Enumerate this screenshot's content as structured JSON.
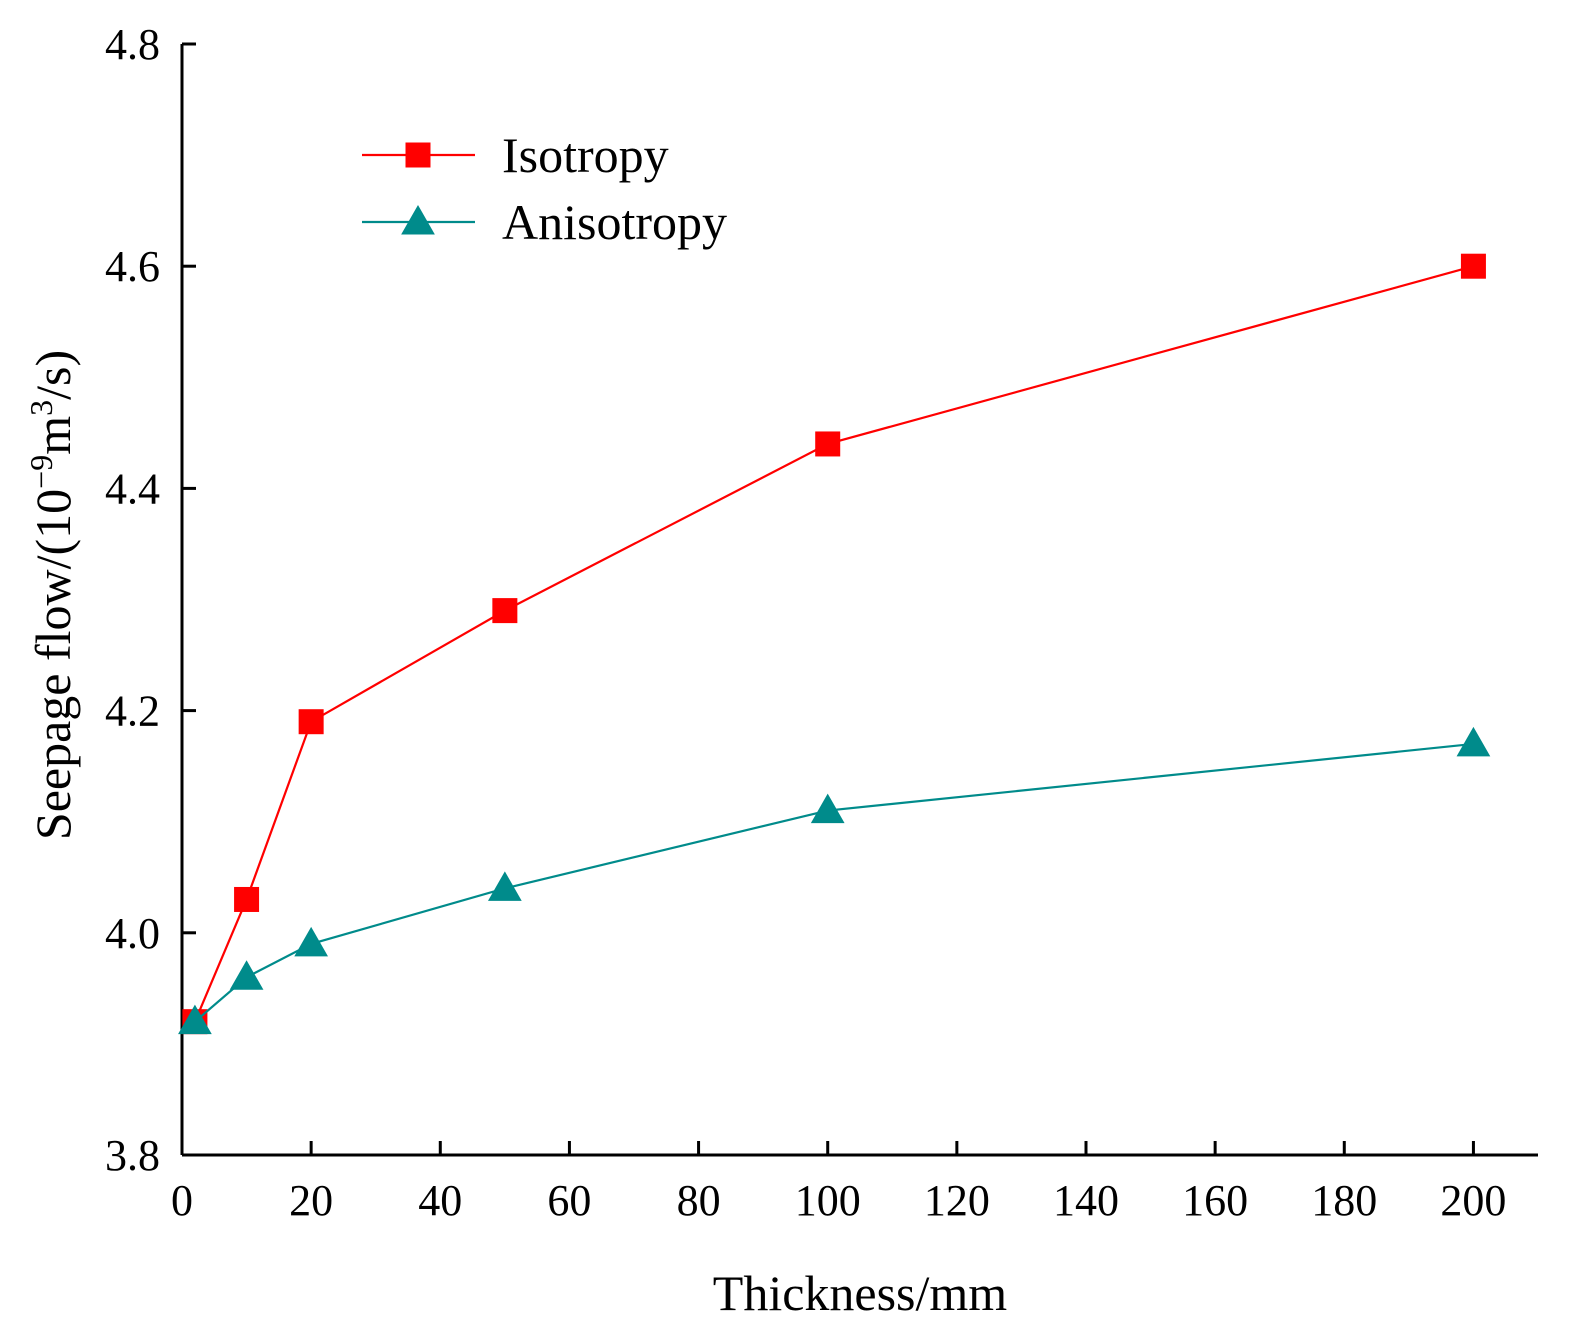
{
  "chart_data": {
    "type": "line",
    "title": "",
    "xlabel": "Thickness/mm",
    "ylabel_parts": [
      {
        "text": "Seepage flow/(10",
        "style": "normal"
      },
      {
        "text": "−9",
        "style": "sup"
      },
      {
        "text": "m",
        "style": "normal"
      },
      {
        "text": "3",
        "style": "sup"
      },
      {
        "text": "/s)",
        "style": "normal"
      }
    ],
    "xlim": [
      0,
      210
    ],
    "ylim": [
      3.8,
      4.8
    ],
    "xticks": [
      0,
      20,
      40,
      60,
      80,
      100,
      120,
      140,
      160,
      180,
      200
    ],
    "yticks": [
      3.8,
      4.0,
      4.2,
      4.4,
      4.6,
      4.8
    ],
    "ytick_labels": [
      "3.8",
      "4.0",
      "4.2",
      "4.4",
      "4.6",
      "4.8"
    ],
    "legend_position": "top-left",
    "series": [
      {
        "name": "Isotropy",
        "marker": "square",
        "color": "#ff0000",
        "x": [
          2,
          10,
          20,
          50,
          100,
          200
        ],
        "y": [
          3.92,
          4.03,
          4.19,
          4.29,
          4.44,
          4.6
        ]
      },
      {
        "name": "Anisotropy",
        "marker": "triangle",
        "color": "#008b8b",
        "x": [
          2,
          10,
          20,
          50,
          100,
          200
        ],
        "y": [
          3.92,
          3.96,
          3.99,
          4.04,
          4.11,
          4.17
        ]
      }
    ]
  }
}
